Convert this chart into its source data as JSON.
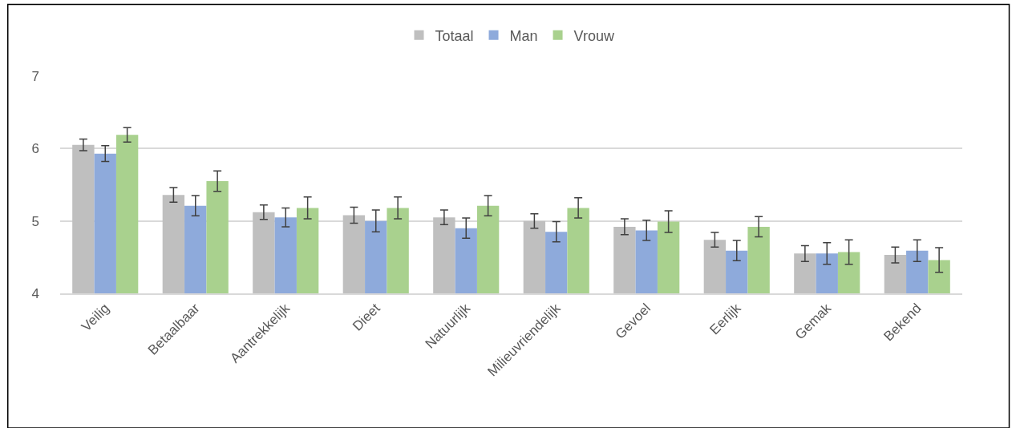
{
  "chart_data": {
    "type": "bar",
    "categories": [
      "Veilig",
      "Betaalbaar",
      "Aantrekkelijk",
      "Dieet",
      "Natuurlijk",
      "Milieuvriendelijk",
      "Gevoel",
      "Eerlijk",
      "Gemak",
      "Bekend"
    ],
    "series": [
      {
        "name": "Totaal",
        "color": "#bfbfbf",
        "values": [
          6.05,
          5.36,
          5.12,
          5.08,
          5.05,
          5.0,
          4.92,
          4.74,
          4.55,
          4.53
        ],
        "errors": [
          0.08,
          0.1,
          0.1,
          0.11,
          0.1,
          0.1,
          0.11,
          0.1,
          0.11,
          0.11
        ]
      },
      {
        "name": "Man",
        "color": "#8eaadb",
        "values": [
          5.93,
          5.21,
          5.05,
          5.0,
          4.9,
          4.85,
          4.87,
          4.59,
          4.55,
          4.59
        ],
        "errors": [
          0.11,
          0.14,
          0.13,
          0.15,
          0.14,
          0.14,
          0.14,
          0.14,
          0.15,
          0.15
        ]
      },
      {
        "name": "Vrouw",
        "color": "#a9d18e",
        "values": [
          6.19,
          5.55,
          5.18,
          5.18,
          5.21,
          5.18,
          4.99,
          4.92,
          4.57,
          4.46
        ],
        "errors": [
          0.1,
          0.14,
          0.15,
          0.15,
          0.14,
          0.14,
          0.15,
          0.14,
          0.17,
          0.17
        ]
      }
    ],
    "ylim": [
      4,
      7
    ],
    "yticks": [
      4,
      5,
      6,
      7
    ],
    "grid": "y",
    "legend": "top"
  }
}
